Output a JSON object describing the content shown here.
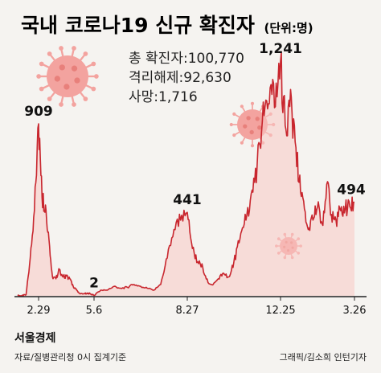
{
  "header": {
    "title": "국내 코로나19 신규 확진자",
    "unit": "(단위:명)"
  },
  "stats": {
    "total": "총 확진자:100,770",
    "released": "격리해제:92,630",
    "deaths": "사망:1,716"
  },
  "footer": {
    "brand": "서울경제",
    "source": "자료/질병관리청 0시 집계기준",
    "credit": "그래픽/김소희 인턴기자"
  },
  "colors": {
    "line": "#c8262e",
    "fill": "#f7c9c4",
    "virus": "#f3a39f",
    "axis": "#222222"
  },
  "chart_data": {
    "type": "area",
    "x_ticks": [
      "2.29",
      "5.6",
      "8.27",
      "12.25",
      "3.26"
    ],
    "annotations": [
      "909",
      "2",
      "441",
      "1,241",
      "494"
    ],
    "ylim": [
      0,
      1300
    ],
    "series": [
      {
        "x": [
          "1.20",
          "2.1",
          "2.18",
          "2.22",
          "2.26",
          "2.29",
          "3.2",
          "3.5",
          "3.8",
          "3.12",
          "3.16",
          "3.20",
          "3.24",
          "3.28",
          "4.1",
          "4.5",
          "4.10",
          "4.15",
          "4.20",
          "4.25",
          "5.1",
          "5.6",
          "5.10",
          "5.20",
          "6.1",
          "6.10",
          "6.20",
          "7.1",
          "7.10",
          "7.20",
          "8.1",
          "8.10",
          "8.15",
          "8.20",
          "8.24",
          "8.27",
          "8.31",
          "9.5",
          "9.10",
          "9.20",
          "10.1",
          "10.10",
          "10.20",
          "11.1",
          "11.10",
          "11.15",
          "11.20",
          "11.25",
          "12.1",
          "12.5",
          "12.10",
          "12.15",
          "12.20",
          "12.25",
          "12.28",
          "1.1",
          "1.5",
          "1.10",
          "1.15",
          "1.20",
          "1.25",
          "2.1",
          "2.10",
          "2.16",
          "2.20",
          "3.1",
          "3.10",
          "3.15",
          "3.20",
          "3.26"
        ],
        "values": [
          1,
          1,
          5,
          200,
          450,
          909,
          520,
          480,
          300,
          100,
          90,
          140,
          100,
          105,
          90,
          50,
          30,
          10,
          10,
          15,
          10,
          2,
          30,
          30,
          50,
          40,
          45,
          60,
          50,
          40,
          30,
          60,
          200,
          350,
          400,
          441,
          250,
          180,
          150,
          70,
          60,
          90,
          120,
          100,
          180,
          280,
          380,
          450,
          600,
          800,
          1000,
          1100,
          1000,
          1241,
          900,
          1000,
          900,
          600,
          500,
          350,
          400,
          470,
          380,
          590,
          430,
          400,
          450,
          460,
          470,
          494
        ]
      }
    ]
  }
}
